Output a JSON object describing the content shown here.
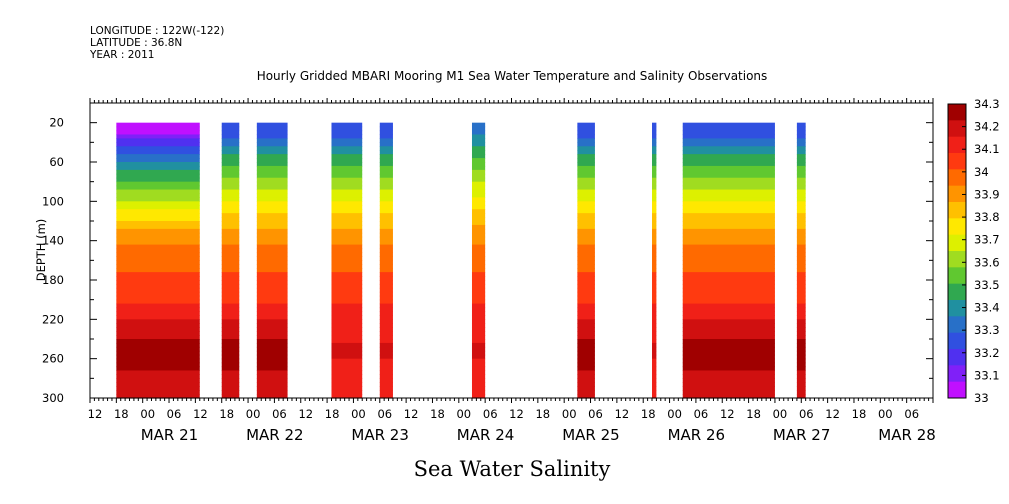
{
  "header": {
    "longitude": "LONGITUDE : 122W(-122)",
    "latitude": "LATITUDE : 36.8N",
    "year": "YEAR : 2011"
  },
  "chart_data": {
    "type": "heatmap",
    "title": "Hourly Gridded MBARI Mooring M1 Sea Water Temperature and Salinity Observations",
    "variable_label": "Sea Water Salinity",
    "ylabel": "DEPTH (m)",
    "ylim": [
      300,
      0
    ],
    "y_ticks": [
      20,
      60,
      100,
      140,
      180,
      220,
      260,
      300
    ],
    "x_hour_ticks": [
      "12",
      "18",
      "00",
      "06",
      "12",
      "18",
      "00",
      "06",
      "12",
      "18",
      "00",
      "06",
      "12",
      "18",
      "00",
      "06",
      "12",
      "18",
      "00",
      "06",
      "12",
      "18",
      "00",
      "06",
      "12",
      "18",
      "00",
      "06",
      "12",
      "18",
      "00",
      "06"
    ],
    "x_date_labels": [
      "MAR 21",
      "MAR 22",
      "MAR 23",
      "MAR 24",
      "MAR 25",
      "MAR 26",
      "MAR 27",
      "MAR 28"
    ],
    "x_range_hours": [
      "2011-03-20 12:00",
      "2011-03-28 12:00"
    ],
    "colorbar": {
      "levels": [
        "34.3",
        "34.2",
        "34.1",
        "34",
        "33.9",
        "33.8",
        "33.7",
        "33.6",
        "33.5",
        "33.4",
        "33.3",
        "33.2",
        "33.1",
        "33"
      ],
      "colors": [
        "#a00000",
        "#d01010",
        "#f02018",
        "#ff3a10",
        "#ff6a00",
        "#ff9400",
        "#ffc000",
        "#ffe800",
        "#ddf000",
        "#a0dc20",
        "#60c830",
        "#30a850",
        "#2090a0",
        "#2870c8",
        "#3050e0",
        "#5030f0",
        "#8020f8",
        "#c010ff"
      ]
    },
    "data_segments": [
      {
        "start": "2011-03-20 18:00",
        "end": "2011-03-21 13:00",
        "surface_salinity": 33.0,
        "depth_260_salinity": 34.3
      },
      {
        "start": "2011-03-21 18:00",
        "end": "2011-03-21 22:00",
        "surface_salinity": 33.2,
        "depth_260_salinity": 34.3
      },
      {
        "start": "2011-03-22 02:00",
        "end": "2011-03-22 09:00",
        "surface_salinity": 33.2,
        "depth_260_salinity": 34.3
      },
      {
        "start": "2011-03-22 19:00",
        "end": "2011-03-23 02:00",
        "surface_salinity": 33.2,
        "depth_260_salinity": 34.2
      },
      {
        "start": "2011-03-23 06:00",
        "end": "2011-03-23 09:00",
        "surface_salinity": 33.2,
        "depth_260_salinity": 34.2
      },
      {
        "start": "2011-03-24 03:00",
        "end": "2011-03-24 06:00",
        "surface_salinity": 33.3,
        "depth_260_salinity": 34.2
      },
      {
        "start": "2011-03-25 03:00",
        "end": "2011-03-25 07:00",
        "surface_salinity": 33.2,
        "depth_260_salinity": 34.3
      },
      {
        "start": "2011-03-25 20:00",
        "end": "2011-03-25 21:00",
        "surface_salinity": 33.2,
        "depth_260_salinity": 34.2
      },
      {
        "start": "2011-03-26 03:00",
        "end": "2011-03-27 00:00",
        "surface_salinity": 33.2,
        "depth_260_salinity": 34.3
      },
      {
        "start": "2011-03-27 05:00",
        "end": "2011-03-27 07:00",
        "surface_salinity": 33.2,
        "depth_260_salinity": 34.3
      }
    ]
  }
}
